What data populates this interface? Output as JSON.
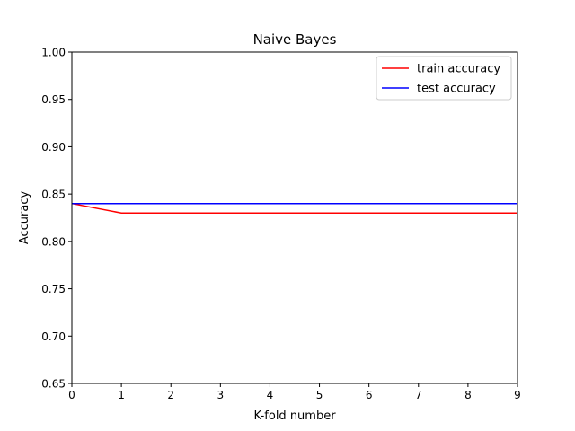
{
  "chart_data": {
    "type": "line",
    "title": "Naive Bayes",
    "xlabel": "K-fold number",
    "ylabel": "Accuracy",
    "x": [
      0,
      1,
      2,
      3,
      4,
      5,
      6,
      7,
      8,
      9
    ],
    "series": [
      {
        "name": "train accuracy",
        "color": "#ff0000",
        "values": [
          0.84,
          0.83,
          0.83,
          0.83,
          0.83,
          0.83,
          0.83,
          0.83,
          0.83,
          0.83
        ]
      },
      {
        "name": "test accuracy",
        "color": "#0000ff",
        "values": [
          0.84,
          0.84,
          0.84,
          0.84,
          0.84,
          0.84,
          0.84,
          0.84,
          0.84,
          0.84
        ]
      }
    ],
    "xlim": [
      0,
      9
    ],
    "ylim": [
      0.65,
      1.0
    ],
    "xticks": [
      "0",
      "1",
      "2",
      "3",
      "4",
      "5",
      "6",
      "7",
      "8",
      "9"
    ],
    "yticks": [
      "0.65",
      "0.70",
      "0.75",
      "0.80",
      "0.85",
      "0.90",
      "0.95",
      "1.00"
    ],
    "grid": false,
    "legend_position": "top-right"
  }
}
